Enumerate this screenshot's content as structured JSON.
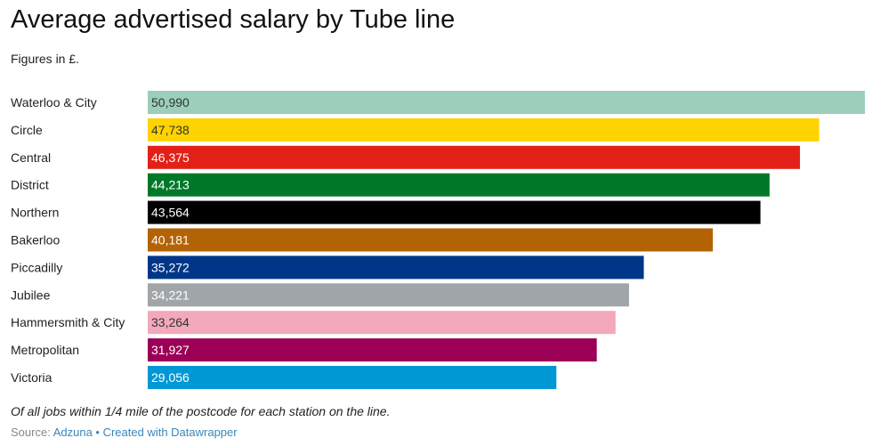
{
  "header": {
    "title": "Average advertised salary by Tube line",
    "subtitle": "Figures in £."
  },
  "chart_data": {
    "type": "bar",
    "orientation": "horizontal",
    "categories": [
      "Waterloo & City",
      "Circle",
      "Central",
      "District",
      "Northern",
      "Bakerloo",
      "Piccadilly",
      "Jubilee",
      "Hammersmith & City",
      "Metropolitan",
      "Victoria"
    ],
    "values": [
      50990,
      47738,
      46375,
      44213,
      43564,
      40181,
      35272,
      34221,
      33264,
      31927,
      29056
    ],
    "value_labels": [
      "50,990",
      "47,738",
      "46,375",
      "44,213",
      "43,564",
      "40,181",
      "35,272",
      "34,221",
      "33,264",
      "31,927",
      "29,056"
    ],
    "colors": [
      "#9bcfb9",
      "#ffd300",
      "#e32017",
      "#00782a",
      "#000000",
      "#b36305",
      "#003688",
      "#a0a5a9",
      "#f3a9bb",
      "#9b0056",
      "#0098d4"
    ],
    "label_colors": [
      "#333333",
      "#333333",
      "#ffffff",
      "#ffffff",
      "#ffffff",
      "#ffffff",
      "#ffffff",
      "#ffffff",
      "#333333",
      "#ffffff",
      "#ffffff"
    ],
    "xlim": [
      0,
      50990
    ],
    "grid": false,
    "legend": "none"
  },
  "footer": {
    "note": "Of all jobs within 1/4 mile of the postcode for each station on the line.",
    "source_prefix": "Source: ",
    "source_name": "Adzuna",
    "separator": " • ",
    "credit": "Created with Datawrapper"
  }
}
